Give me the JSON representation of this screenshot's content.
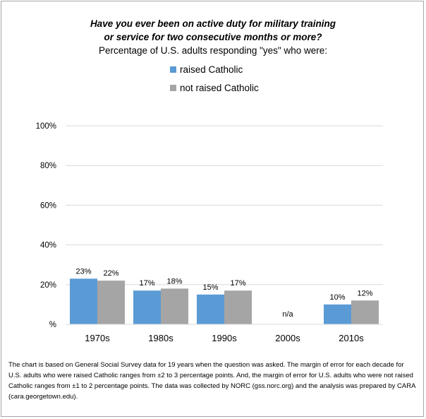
{
  "chart_data": {
    "type": "bar",
    "title_line1": "Have you ever been on active duty for military training",
    "title_line2": "or service for two consecutive months or more?",
    "subtitle": "Percentage of U.S. adults responding \"yes\" who were:",
    "categories": [
      "1970s",
      "1980s",
      "1990s",
      "2000s",
      "2010s"
    ],
    "series": [
      {
        "name": "raised Catholic",
        "color": "#5b9bd5",
        "values": [
          23,
          17,
          15,
          null,
          10
        ],
        "labels": [
          "23%",
          "17%",
          "15%",
          "",
          "10%"
        ]
      },
      {
        "name": "not raised Catholic",
        "color": "#a5a5a5",
        "values": [
          22,
          18,
          17,
          null,
          12
        ],
        "labels": [
          "22%",
          "18%",
          "17%",
          "",
          "12%"
        ]
      }
    ],
    "missing_label": "n/a",
    "yticks": [
      "%",
      "20%",
      "40%",
      "60%",
      "80%",
      "100%"
    ],
    "ylim": [
      0,
      100
    ],
    "grid": true,
    "legend_position": "top-left"
  },
  "footnote": "The chart is based on General Social Survey data for 19 years when the question was asked.  The margin of error for each decade for U.S. adults who were raised Catholic ranges from ±2 to 3 percentage points. And, the margin of error for U.S. adults who were not raised Catholic ranges from ±1 to 2 percentage points. The data was collected by NORC (gss.norc.org) and the analysis was prepared by CARA (cara.georgetown.edu)."
}
